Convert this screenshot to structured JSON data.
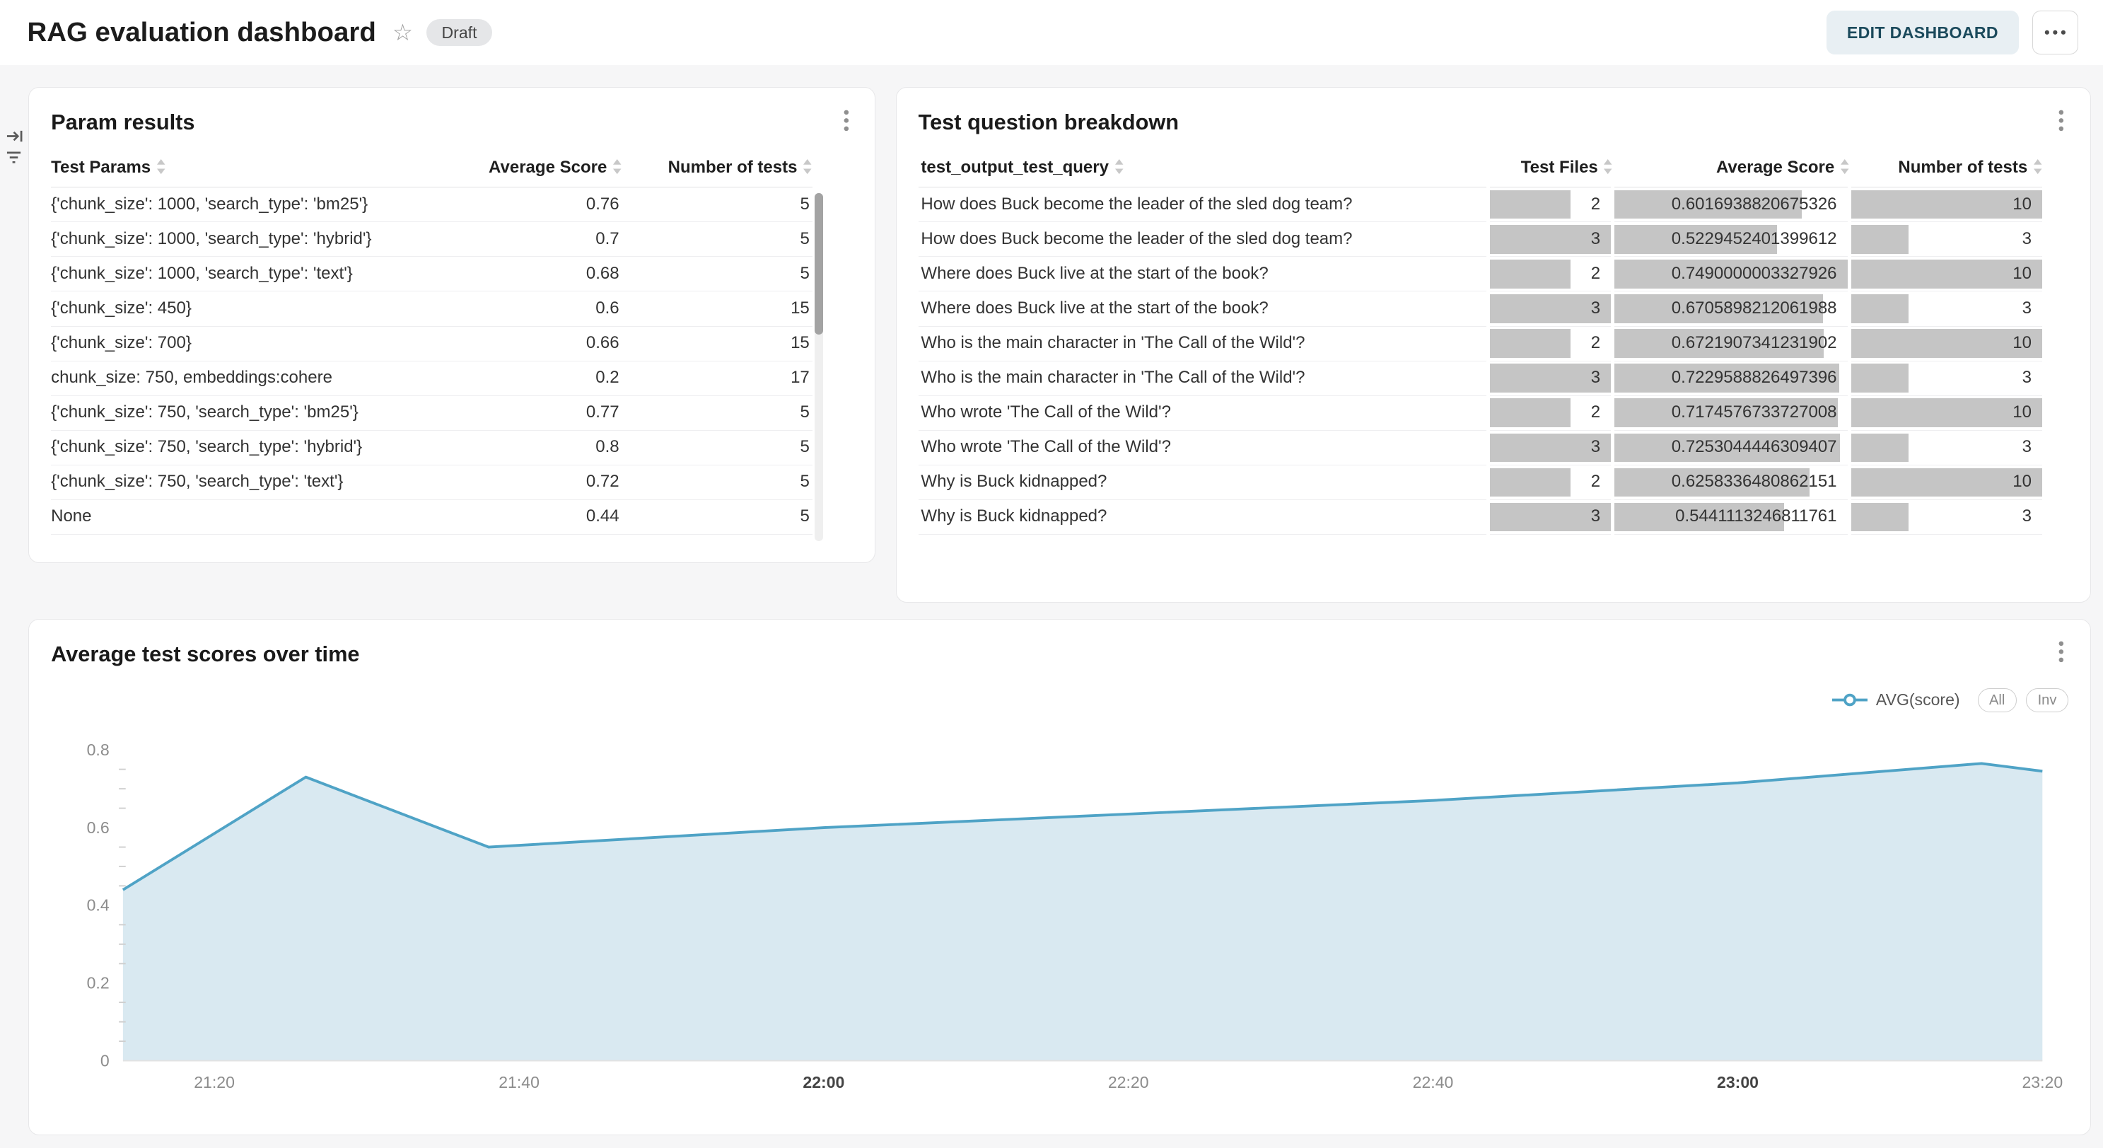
{
  "header": {
    "title": "RAG evaluation dashboard",
    "status": "Draft",
    "edit_button": "EDIT DASHBOARD"
  },
  "param_results": {
    "title": "Param results",
    "columns": {
      "params": "Test Params",
      "avg_score": "Average Score",
      "num_tests": "Number of tests"
    },
    "rows": [
      {
        "params": "{'chunk_size': 1000, 'search_type': 'bm25'}",
        "avg_score": "0.76",
        "num_tests": "5"
      },
      {
        "params": "{'chunk_size': 1000, 'search_type': 'hybrid'}",
        "avg_score": "0.7",
        "num_tests": "5"
      },
      {
        "params": "{'chunk_size': 1000, 'search_type': 'text'}",
        "avg_score": "0.68",
        "num_tests": "5"
      },
      {
        "params": "{'chunk_size': 450}",
        "avg_score": "0.6",
        "num_tests": "15"
      },
      {
        "params": "{'chunk_size': 700}",
        "avg_score": "0.66",
        "num_tests": "15"
      },
      {
        "params": "chunk_size: 750, embeddings:cohere",
        "avg_score": "0.2",
        "num_tests": "17"
      },
      {
        "params": "{'chunk_size': 750, 'search_type': 'bm25'}",
        "avg_score": "0.77",
        "num_tests": "5"
      },
      {
        "params": "{'chunk_size': 750, 'search_type': 'hybrid'}",
        "avg_score": "0.8",
        "num_tests": "5"
      },
      {
        "params": "{'chunk_size': 750, 'search_type': 'text'}",
        "avg_score": "0.72",
        "num_tests": "5"
      },
      {
        "params": "None",
        "avg_score": "0.44",
        "num_tests": "5"
      }
    ]
  },
  "question_breakdown": {
    "title": "Test question breakdown",
    "columns": {
      "query": "test_output_test_query",
      "files": "Test Files",
      "score": "Average Score",
      "tests": "Number of tests"
    },
    "bar_color": "#c5c5c5",
    "max": {
      "files": 3,
      "score": 0.7490000003327926,
      "tests": 10
    },
    "rows": [
      {
        "query": "How does Buck become the leader of the sled dog team?",
        "files": 2,
        "score": "0.6016938820675326",
        "tests": 10
      },
      {
        "query": "How does Buck become the leader of the sled dog team?",
        "files": 3,
        "score": "0.5229452401399612",
        "tests": 3
      },
      {
        "query": "Where does Buck live at the start of the book?",
        "files": 2,
        "score": "0.7490000003327926",
        "tests": 10
      },
      {
        "query": "Where does Buck live at the start of the book?",
        "files": 3,
        "score": "0.6705898212061988",
        "tests": 3
      },
      {
        "query": "Who is the main character in 'The Call of the Wild'?",
        "files": 2,
        "score": "0.6721907341231902",
        "tests": 10
      },
      {
        "query": "Who is the main character in 'The Call of the Wild'?",
        "files": 3,
        "score": "0.7229588826497396",
        "tests": 3
      },
      {
        "query": "Who wrote 'The Call of the Wild'?",
        "files": 2,
        "score": "0.7174576733727008",
        "tests": 10
      },
      {
        "query": "Who wrote 'The Call of the Wild'?",
        "files": 3,
        "score": "0.7253044446309407",
        "tests": 3
      },
      {
        "query": "Why is Buck kidnapped?",
        "files": 2,
        "score": "0.6258336480862151",
        "tests": 10
      },
      {
        "query": "Why is Buck kidnapped?",
        "files": 3,
        "score": "0.5441113246811761",
        "tests": 3
      }
    ]
  },
  "chart_card": {
    "title": "Average test scores over time",
    "legend": {
      "series_label": "AVG(score)",
      "all_button": "All",
      "inv_button": "Inv"
    }
  },
  "chart_data": {
    "type": "area",
    "title": "Average test scores over time",
    "series": [
      {
        "name": "AVG(score)",
        "points": [
          [
            "21:14",
            0.44
          ],
          [
            "21:26",
            0.73
          ],
          [
            "21:38",
            0.55
          ],
          [
            "22:00",
            0.6
          ],
          [
            "22:20",
            0.635
          ],
          [
            "22:40",
            0.67
          ],
          [
            "23:00",
            0.715
          ],
          [
            "23:16",
            0.765
          ],
          [
            "23:20",
            0.745
          ]
        ]
      }
    ],
    "x_range": [
      "21:14",
      "23:20"
    ],
    "x_ticks": [
      "21:20",
      "21:40",
      "22:00",
      "22:20",
      "22:40",
      "23:00",
      "23:20"
    ],
    "x_bold_ticks": [
      "22:00",
      "23:00"
    ],
    "y_ticks": [
      "0",
      "0.2",
      "0.4",
      "0.6",
      "0.8"
    ],
    "ylim": [
      0,
      0.84
    ],
    "grid": false,
    "legend_position": "top-right",
    "line_color": "#4FA3C6",
    "fill_color": "#D9E9F1"
  }
}
